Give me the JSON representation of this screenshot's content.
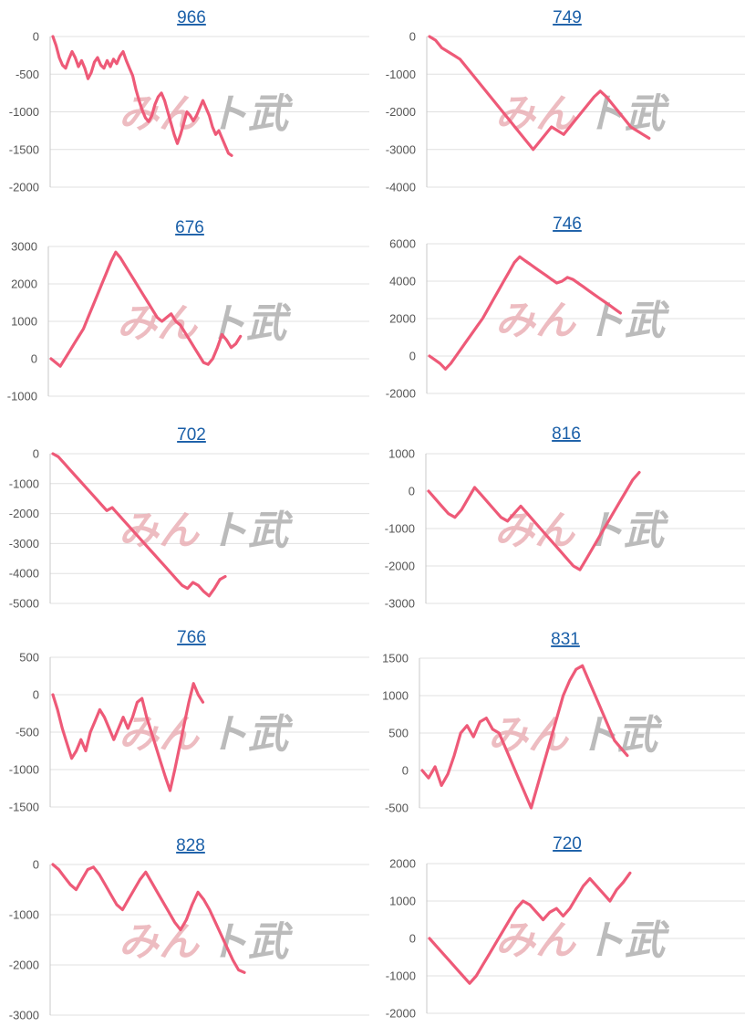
{
  "watermark": {
    "part1": "みん",
    "part2": "ト武"
  },
  "colors": {
    "series": "#ee5a78",
    "title": "#1a5fa8"
  },
  "chart_data": [
    {
      "type": "line",
      "title": "966",
      "ylim": [
        -2000,
        0
      ],
      "yticks": [
        0,
        -500,
        -1000,
        -1500,
        -2000
      ],
      "grid": true,
      "series": [
        {
          "values": [
            0,
            -120,
            -280,
            -380,
            -420,
            -300,
            -200,
            -280,
            -400,
            -320,
            -420,
            -560,
            -480,
            -340,
            -280,
            -380,
            -420,
            -320,
            -400,
            -300,
            -360,
            -260,
            -200,
            -320,
            -420,
            -520,
            -700,
            -850,
            -980,
            -1080,
            -1130,
            -1050,
            -900,
            -800,
            -750,
            -850,
            -1000,
            -1150,
            -1300,
            -1420,
            -1300,
            -1150,
            -1000,
            -1050,
            -1120,
            -1050,
            -950,
            -850,
            -950,
            -1050,
            -1200,
            -1300,
            -1250,
            -1350,
            -1450,
            -1550,
            -1580
          ]
        }
      ]
    },
    {
      "type": "line",
      "title": "749",
      "ylim": [
        -4000,
        0
      ],
      "yticks": [
        0,
        -1000,
        -2000,
        -3000,
        -4000
      ],
      "grid": true,
      "series": [
        {
          "values": [
            0,
            -100,
            -300,
            -400,
            -500,
            -600,
            -800,
            -1000,
            -1200,
            -1400,
            -1600,
            -1800,
            -2000,
            -2200,
            -2400,
            -2600,
            -2800,
            -3000,
            -2800,
            -2600,
            -2400,
            -2500,
            -2600,
            -2400,
            -2200,
            -2000,
            -1800,
            -1600,
            -1450,
            -1600,
            -1800,
            -2000,
            -2200,
            -2400,
            -2500,
            -2600,
            -2700
          ]
        }
      ]
    },
    {
      "type": "line",
      "title": "676",
      "ylim": [
        -1000,
        3000
      ],
      "yticks": [
        3000,
        2000,
        1000,
        0,
        -1000
      ],
      "grid": true,
      "series": [
        {
          "values": [
            0,
            -100,
            -200,
            0,
            200,
            400,
            600,
            800,
            1100,
            1400,
            1700,
            2000,
            2300,
            2600,
            2850,
            2700,
            2500,
            2300,
            2100,
            1900,
            1700,
            1500,
            1300,
            1100,
            1000,
            1100,
            1200,
            1000,
            900,
            700,
            500,
            300,
            100,
            -100,
            -150,
            0,
            300,
            650,
            500,
            300,
            400,
            600
          ]
        }
      ]
    },
    {
      "type": "line",
      "title": "746",
      "ylim": [
        -2000,
        6000
      ],
      "yticks": [
        6000,
        4000,
        2000,
        0,
        -2000
      ],
      "grid": true,
      "series": [
        {
          "values": [
            0,
            -200,
            -400,
            -700,
            -400,
            0,
            400,
            800,
            1200,
            1600,
            2000,
            2500,
            3000,
            3500,
            4000,
            4500,
            5000,
            5300,
            5100,
            4900,
            4700,
            4500,
            4300,
            4100,
            3900,
            4000,
            4200,
            4100,
            3900,
            3700,
            3500,
            3300,
            3100,
            2900,
            2700,
            2500,
            2300
          ]
        }
      ]
    },
    {
      "type": "line",
      "title": "702",
      "ylim": [
        -5000,
        0
      ],
      "yticks": [
        0,
        -1000,
        -2000,
        -3000,
        -4000,
        -5000
      ],
      "grid": true,
      "series": [
        {
          "values": [
            0,
            -100,
            -300,
            -500,
            -700,
            -900,
            -1100,
            -1300,
            -1500,
            -1700,
            -1900,
            -1800,
            -2000,
            -2200,
            -2400,
            -2600,
            -2800,
            -3000,
            -3200,
            -3400,
            -3600,
            -3800,
            -4000,
            -4200,
            -4400,
            -4500,
            -4300,
            -4400,
            -4600,
            -4750,
            -4500,
            -4200,
            -4100
          ]
        }
      ]
    },
    {
      "type": "line",
      "title": "816",
      "ylim": [
        -3000,
        1000
      ],
      "yticks": [
        1000,
        0,
        -1000,
        -2000,
        -3000
      ],
      "grid": true,
      "series": [
        {
          "values": [
            0,
            -200,
            -400,
            -600,
            -700,
            -500,
            -200,
            100,
            -100,
            -300,
            -500,
            -700,
            -800,
            -600,
            -400,
            -600,
            -800,
            -1000,
            -1200,
            -1400,
            -1600,
            -1800,
            -2000,
            -2100,
            -1800,
            -1500,
            -1200,
            -900,
            -600,
            -300,
            0,
            300,
            500
          ]
        }
      ]
    },
    {
      "type": "line",
      "title": "766",
      "ylim": [
        -1500,
        500
      ],
      "yticks": [
        500,
        0,
        -500,
        -1000,
        -1500
      ],
      "grid": true,
      "series": [
        {
          "values": [
            0,
            -200,
            -450,
            -650,
            -850,
            -750,
            -600,
            -750,
            -500,
            -350,
            -200,
            -300,
            -450,
            -600,
            -450,
            -300,
            -450,
            -300,
            -100,
            -50,
            -300,
            -500,
            -700,
            -900,
            -1100,
            -1280,
            -1000,
            -700,
            -400,
            -100,
            150,
            0,
            -100
          ]
        }
      ]
    },
    {
      "type": "line",
      "title": "831",
      "ylim": [
        -500,
        1500
      ],
      "yticks": [
        1500,
        1000,
        500,
        0,
        -500
      ],
      "grid": true,
      "series": [
        {
          "values": [
            0,
            -100,
            50,
            -200,
            -50,
            200,
            500,
            600,
            450,
            650,
            700,
            550,
            500,
            300,
            100,
            -100,
            -300,
            -500,
            -200,
            100,
            400,
            700,
            1000,
            1200,
            1350,
            1400,
            1200,
            1000,
            800,
            600,
            400,
            300,
            200
          ]
        }
      ]
    },
    {
      "type": "line",
      "title": "828",
      "ylim": [
        -3000,
        0
      ],
      "yticks": [
        0,
        -1000,
        -2000,
        -3000
      ],
      "grid": true,
      "series": [
        {
          "values": [
            0,
            -100,
            -250,
            -400,
            -500,
            -300,
            -100,
            -50,
            -200,
            -400,
            -600,
            -800,
            -900,
            -700,
            -500,
            -300,
            -150,
            -350,
            -550,
            -750,
            -950,
            -1150,
            -1300,
            -1100,
            -800,
            -550,
            -700,
            -900,
            -1150,
            -1400,
            -1650,
            -1900,
            -2100,
            -2150
          ]
        }
      ]
    },
    {
      "type": "line",
      "title": "720",
      "ylim": [
        -2000,
        2000
      ],
      "yticks": [
        2000,
        1000,
        0,
        -1000,
        -2000
      ],
      "grid": true,
      "series": [
        {
          "values": [
            0,
            -200,
            -400,
            -600,
            -800,
            -1000,
            -1200,
            -1000,
            -700,
            -400,
            -100,
            200,
            500,
            800,
            1000,
            900,
            700,
            500,
            700,
            800,
            600,
            800,
            1100,
            1400,
            1600,
            1400,
            1200,
            1000,
            1300,
            1500,
            1750
          ]
        }
      ]
    }
  ]
}
